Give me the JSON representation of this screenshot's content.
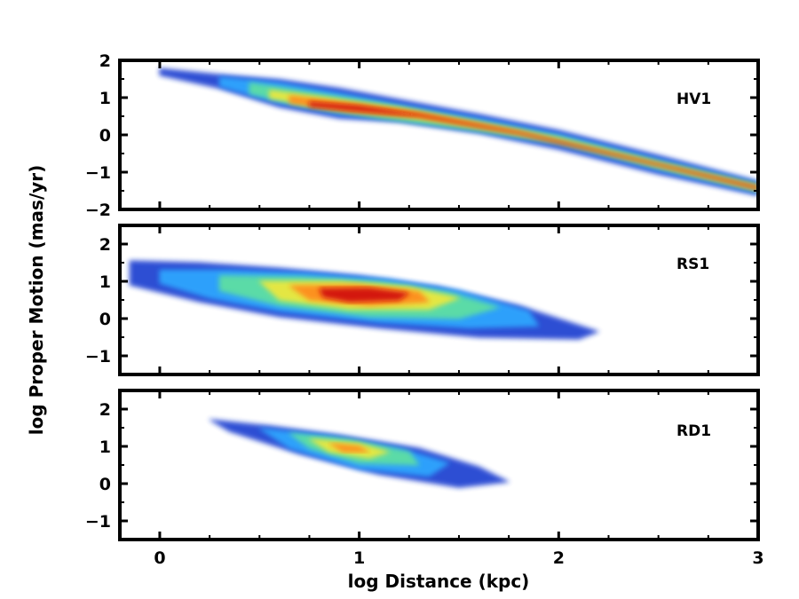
{
  "chart_data": {
    "type": "contour",
    "xlabel": "log Distance (kpc)",
    "ylabel": "log Proper Motion (mas/yr)",
    "xlim": [
      -0.2,
      3
    ],
    "xticks": [
      0,
      1,
      2,
      3
    ],
    "xtick_labels": [
      "0",
      "1",
      "2",
      "3"
    ],
    "panels": [
      {
        "label": "HV1",
        "ylim": [
          -2,
          2
        ],
        "yticks": [
          -2,
          -1,
          0,
          1,
          2
        ],
        "ytick_labels": [
          "−2",
          "−1",
          "0",
          "1",
          "2"
        ],
        "levels": [
          {
            "color": "#1f3fd0",
            "points": [
              [
                0.0,
                1.78
              ],
              [
                0.3,
                1.62
              ],
              [
                0.6,
                1.48
              ],
              [
                0.9,
                1.25
              ],
              [
                1.2,
                0.95
              ],
              [
                1.6,
                0.55
              ],
              [
                2.0,
                0.12
              ],
              [
                2.5,
                -0.55
              ],
              [
                3.0,
                -1.25
              ],
              [
                3.0,
                -1.62
              ],
              [
                2.5,
                -1.05
              ],
              [
                2.0,
                -0.38
              ],
              [
                1.6,
                0.05
              ],
              [
                1.2,
                0.35
              ],
              [
                0.9,
                0.45
              ],
              [
                0.6,
                0.75
              ],
              [
                0.3,
                1.25
              ],
              [
                0.0,
                1.6
              ]
            ]
          },
          {
            "color": "#2fa8ff",
            "points": [
              [
                0.3,
                1.55
              ],
              [
                0.6,
                1.4
              ],
              [
                0.9,
                1.12
              ],
              [
                1.2,
                0.82
              ],
              [
                1.6,
                0.45
              ],
              [
                2.0,
                0.02
              ],
              [
                2.5,
                -0.65
              ],
              [
                3.0,
                -1.3
              ],
              [
                3.0,
                -1.55
              ],
              [
                2.5,
                -0.95
              ],
              [
                2.0,
                -0.28
              ],
              [
                1.6,
                0.12
              ],
              [
                1.2,
                0.42
              ],
              [
                0.9,
                0.55
              ],
              [
                0.6,
                0.85
              ],
              [
                0.3,
                1.3
              ]
            ]
          },
          {
            "color": "#5fe0a0",
            "points": [
              [
                0.45,
                1.4
              ],
              [
                0.75,
                1.15
              ],
              [
                1.1,
                0.85
              ],
              [
                1.5,
                0.45
              ],
              [
                2.0,
                -0.05
              ],
              [
                2.5,
                -0.72
              ],
              [
                3.0,
                -1.35
              ],
              [
                3.0,
                -1.5
              ],
              [
                2.5,
                -0.88
              ],
              [
                2.0,
                -0.2
              ],
              [
                1.5,
                0.18
              ],
              [
                1.1,
                0.45
              ],
              [
                0.75,
                0.75
              ],
              [
                0.45,
                1.1
              ]
            ]
          },
          {
            "color": "#f0e83a",
            "points": [
              [
                0.55,
                1.2
              ],
              [
                0.85,
                0.98
              ],
              [
                1.2,
                0.72
              ],
              [
                1.6,
                0.32
              ],
              [
                2.0,
                -0.1
              ],
              [
                2.5,
                -0.76
              ],
              [
                3.0,
                -1.38
              ],
              [
                3.0,
                -1.47
              ],
              [
                2.5,
                -0.84
              ],
              [
                2.0,
                -0.16
              ],
              [
                1.6,
                0.2
              ],
              [
                1.2,
                0.5
              ],
              [
                0.85,
                0.72
              ],
              [
                0.55,
                0.98
              ]
            ]
          },
          {
            "color": "#ff8a1e",
            "points": [
              [
                0.65,
                1.05
              ],
              [
                0.95,
                0.85
              ],
              [
                1.3,
                0.6
              ],
              [
                1.8,
                0.1
              ],
              [
                2.5,
                -0.78
              ],
              [
                3.0,
                -1.4
              ],
              [
                3.0,
                -1.45
              ],
              [
                2.5,
                -0.82
              ],
              [
                1.8,
                0.02
              ],
              [
                1.3,
                0.48
              ],
              [
                0.95,
                0.62
              ],
              [
                0.65,
                0.85
              ]
            ]
          },
          {
            "color": "#d01010",
            "points": [
              [
                0.75,
                0.88
              ],
              [
                1.0,
                0.78
              ],
              [
                1.3,
                0.55
              ],
              [
                1.8,
                0.06
              ],
              [
                2.5,
                -0.79
              ],
              [
                3.0,
                -1.41
              ],
              [
                3.0,
                -1.44
              ],
              [
                2.5,
                -0.81
              ],
              [
                1.8,
                0.04
              ],
              [
                1.3,
                0.5
              ],
              [
                1.0,
                0.64
              ],
              [
                0.75,
                0.76
              ]
            ]
          }
        ]
      },
      {
        "label": "RS1",
        "ylim": [
          -1.5,
          2.5
        ],
        "yticks": [
          -1,
          0,
          1,
          2
        ],
        "ytick_labels": [
          "−1",
          "0",
          "1",
          "2"
        ],
        "levels": [
          {
            "color": "#1f3fd0",
            "points": [
              [
                -0.15,
                1.55
              ],
              [
                0.2,
                1.5
              ],
              [
                0.6,
                1.35
              ],
              [
                1.0,
                1.15
              ],
              [
                1.4,
                0.85
              ],
              [
                1.8,
                0.35
              ],
              [
                2.2,
                -0.35
              ],
              [
                2.1,
                -0.55
              ],
              [
                1.6,
                -0.5
              ],
              [
                1.1,
                -0.25
              ],
              [
                0.6,
                0.05
              ],
              [
                0.2,
                0.45
              ],
              [
                -0.15,
                0.9
              ]
            ]
          },
          {
            "color": "#2fa8ff",
            "points": [
              [
                0.0,
                1.3
              ],
              [
                0.35,
                1.3
              ],
              [
                0.75,
                1.22
              ],
              [
                1.15,
                1.05
              ],
              [
                1.5,
                0.75
              ],
              [
                1.85,
                0.2
              ],
              [
                1.9,
                -0.2
              ],
              [
                1.55,
                -0.25
              ],
              [
                1.1,
                -0.1
              ],
              [
                0.6,
                0.2
              ],
              [
                0.25,
                0.55
              ],
              [
                0.0,
                0.95
              ]
            ]
          },
          {
            "color": "#5fe0a0",
            "points": [
              [
                0.3,
                1.15
              ],
              [
                0.7,
                1.12
              ],
              [
                1.1,
                0.98
              ],
              [
                1.45,
                0.7
              ],
              [
                1.7,
                0.3
              ],
              [
                1.5,
                0.0
              ],
              [
                1.05,
                0.05
              ],
              [
                0.6,
                0.35
              ],
              [
                0.3,
                0.75
              ]
            ]
          },
          {
            "color": "#f0e83a",
            "points": [
              [
                0.5,
                1.0
              ],
              [
                0.9,
                1.0
              ],
              [
                1.25,
                0.85
              ],
              [
                1.5,
                0.55
              ],
              [
                1.35,
                0.25
              ],
              [
                0.95,
                0.25
              ],
              [
                0.6,
                0.5
              ]
            ]
          },
          {
            "color": "#ff8a1e",
            "points": [
              [
                0.65,
                0.88
              ],
              [
                1.0,
                0.9
              ],
              [
                1.3,
                0.72
              ],
              [
                1.35,
                0.45
              ],
              [
                1.05,
                0.35
              ],
              [
                0.75,
                0.5
              ]
            ]
          },
          {
            "color": "#d01010",
            "points": [
              [
                0.8,
                0.8
              ],
              [
                1.05,
                0.82
              ],
              [
                1.25,
                0.68
              ],
              [
                1.2,
                0.5
              ],
              [
                0.95,
                0.45
              ],
              [
                0.82,
                0.58
              ]
            ]
          }
        ]
      },
      {
        "label": "RD1",
        "ylim": [
          -1.5,
          2.5
        ],
        "yticks": [
          -1,
          0,
          1,
          2
        ],
        "ytick_labels": [
          "−1",
          "0",
          "1",
          "2"
        ],
        "levels": [
          {
            "color": "#1f3fd0",
            "points": [
              [
                0.25,
                1.72
              ],
              [
                0.55,
                1.55
              ],
              [
                0.9,
                1.3
              ],
              [
                1.3,
                0.95
              ],
              [
                1.6,
                0.45
              ],
              [
                1.75,
                0.05
              ],
              [
                1.5,
                -0.1
              ],
              [
                1.1,
                0.25
              ],
              [
                0.7,
                0.8
              ],
              [
                0.35,
                1.4
              ]
            ]
          },
          {
            "color": "#2fa8ff",
            "points": [
              [
                0.5,
                1.48
              ],
              [
                0.85,
                1.28
              ],
              [
                1.2,
                0.95
              ],
              [
                1.45,
                0.55
              ],
              [
                1.35,
                0.2
              ],
              [
                1.0,
                0.4
              ],
              [
                0.65,
                0.95
              ]
            ]
          },
          {
            "color": "#5fe0a0",
            "points": [
              [
                0.65,
                1.35
              ],
              [
                0.95,
                1.18
              ],
              [
                1.25,
                0.85
              ],
              [
                1.3,
                0.5
              ],
              [
                1.0,
                0.55
              ],
              [
                0.75,
                0.95
              ]
            ]
          },
          {
            "color": "#f0e83a",
            "points": [
              [
                0.75,
                1.2
              ],
              [
                1.0,
                1.08
              ],
              [
                1.15,
                0.85
              ],
              [
                1.05,
                0.68
              ],
              [
                0.85,
                0.85
              ]
            ]
          },
          {
            "color": "#ff8a1e",
            "points": [
              [
                0.85,
                1.08
              ],
              [
                1.0,
                1.0
              ],
              [
                1.05,
                0.85
              ],
              [
                0.92,
                0.85
              ]
            ]
          }
        ]
      }
    ]
  }
}
